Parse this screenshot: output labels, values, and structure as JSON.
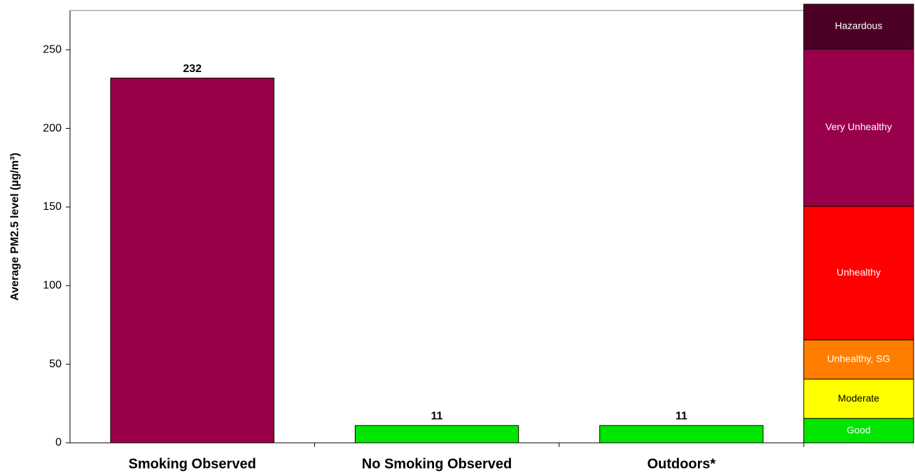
{
  "chart_data": {
    "type": "bar",
    "y_label": "Average PM2.5 level (µg/m³)",
    "categories": [
      "Smoking Observed",
      "No Smoking Observed",
      "Outdoors*"
    ],
    "values": [
      232,
      11,
      11
    ],
    "colors": [
      "#990047",
      "#00e600",
      "#00e600"
    ],
    "ylim": [
      0,
      275
    ],
    "yticks": [
      0,
      50,
      100,
      150,
      200,
      250
    ],
    "grid": false,
    "aqi_bands": [
      {
        "label": "Good",
        "from": 0,
        "to": 15.5,
        "color": "#00e600",
        "text_color": "#ffffff"
      },
      {
        "label": "Moderate",
        "from": 15.5,
        "to": 40.5,
        "color": "#ffff00",
        "text_color": "#000000"
      },
      {
        "label": "Unhealthy, SG",
        "from": 40.5,
        "to": 65.5,
        "color": "#ff7e00",
        "text_color": "#ffffff"
      },
      {
        "label": "Unhealthy",
        "from": 65.5,
        "to": 150.5,
        "color": "#ff0000",
        "text_color": "#ffffff"
      },
      {
        "label": "Very Unhealthy",
        "from": 150.5,
        "to": 250.5,
        "color": "#99004c",
        "text_color": "#ffffff"
      },
      {
        "label": "Hazardous",
        "from": 250.5,
        "to": 279,
        "color": "#4c0026",
        "text_color": "#ffffff"
      }
    ]
  }
}
